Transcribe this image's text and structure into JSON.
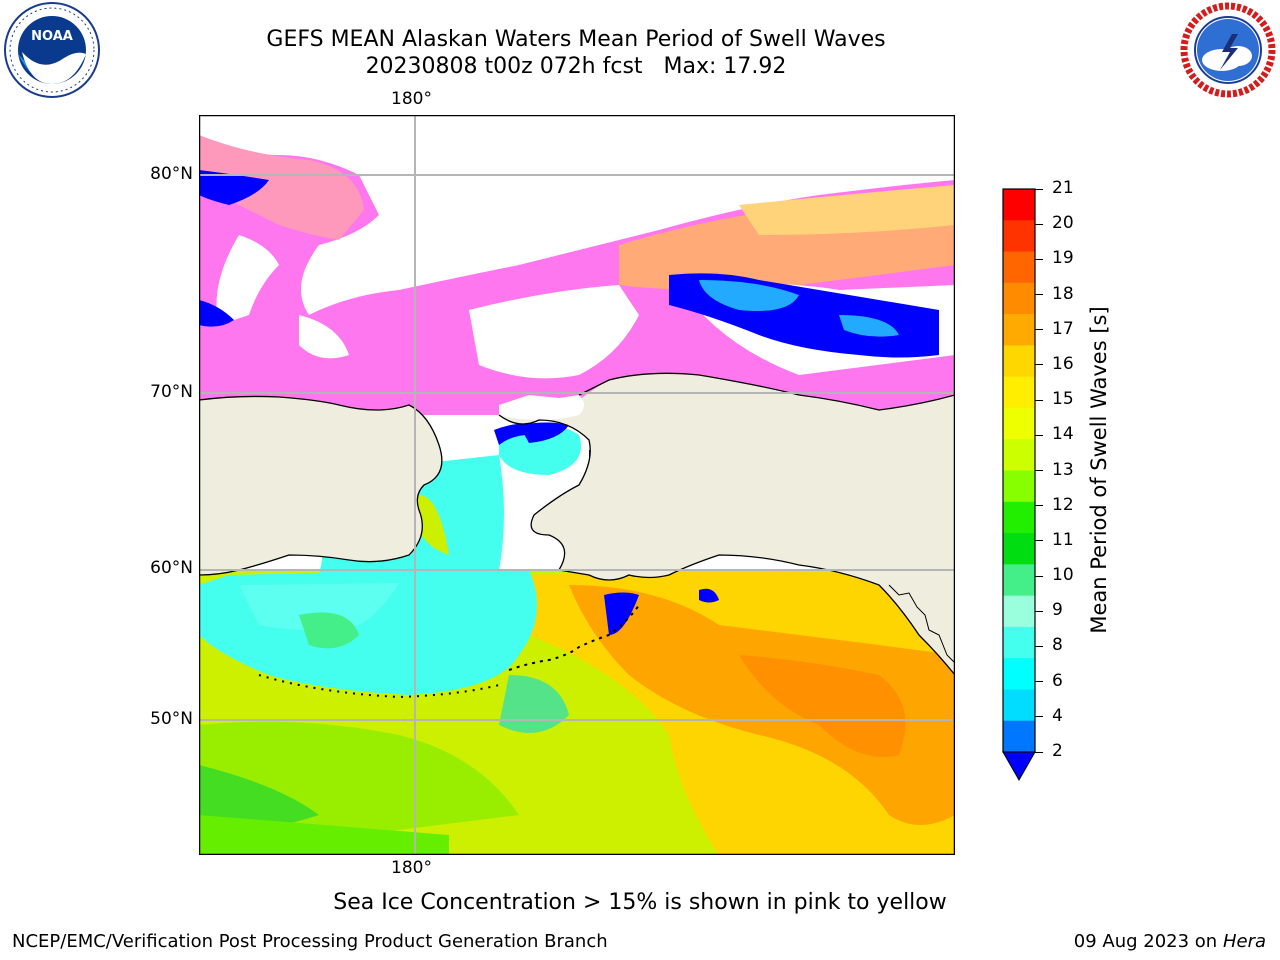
{
  "header": {
    "title": "GEFS MEAN Alaskan Waters Mean Period of Swell Waves",
    "subtitle_date": "20230808 t00z 072h fcst",
    "subtitle_max": "Max: 17.92"
  },
  "logos": {
    "left": {
      "name": "NOAA",
      "ring_text": "NATIONAL OCEANIC AND ATMOSPHERIC ADMINISTRATION · U.S. DEPARTMENT OF COMMERCE"
    },
    "right": {
      "name": "NATIONAL WEATHER SERVICE"
    }
  },
  "map": {
    "lon_label_top": "180°",
    "lon_label_bottom": "180°",
    "lat_labels": [
      "80°N",
      "70°N",
      "60°N",
      "50°N"
    ],
    "colors": {
      "land": "#efedde",
      "ice_free_sea_ice_area": "#ffffff",
      "graticule": "#b5b5b5",
      "coast": "#000000"
    }
  },
  "colorbar": {
    "title": "Mean Period of Swell Waves [s]",
    "ticks": [
      "21",
      "20",
      "19",
      "18",
      "17",
      "16",
      "15",
      "14",
      "13",
      "12",
      "11",
      "10",
      "9",
      "8",
      "6",
      "4",
      "2"
    ],
    "colors_top_to_bottom": [
      "#ff0000",
      "#ff3300",
      "#ff6600",
      "#ff8c00",
      "#ffaa00",
      "#ffd700",
      "#ffee00",
      "#eeff00",
      "#ccff00",
      "#88ff00",
      "#22ee00",
      "#00dd11",
      "#44ee88",
      "#99ffdd",
      "#44ffee",
      "#00ffff",
      "#00ddff",
      "#0077ff"
    ],
    "under_color": "#0000ff"
  },
  "footer": {
    "note": "Sea Ice Concentration > 15% is shown in pink to yellow",
    "credit": "NCEP/EMC/Verification Post Processing Product Generation Branch",
    "date": "09 Aug 2023 on",
    "machine": "Hera"
  }
}
